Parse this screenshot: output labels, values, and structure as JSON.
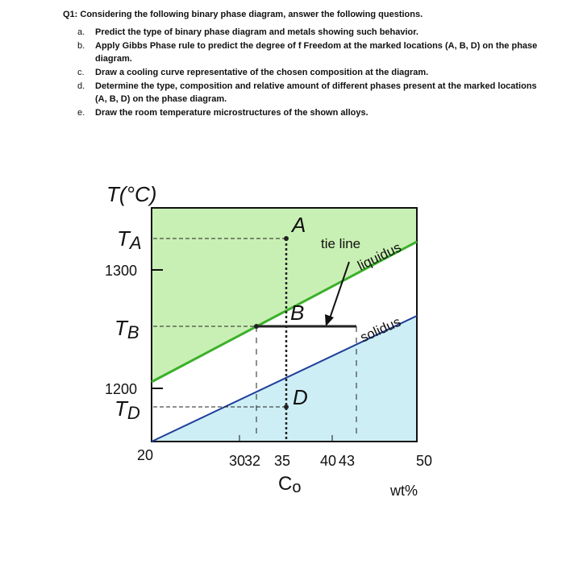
{
  "question": {
    "title": "Q1: Considering the following binary phase diagram, answer the following questions.",
    "items": [
      {
        "marker": "a.",
        "text": "Predict the type of binary phase diagram and metals showing such behavior."
      },
      {
        "marker": "b.",
        "text": "Apply Gibbs Phase rule to predict the degree of f Freedom at the marked locations (A, B, D) on the phase diagram."
      },
      {
        "marker": "c.",
        "text": "Draw a cooling curve representative of the chosen composition at the diagram."
      },
      {
        "marker": "d.",
        "text": "Determine the type, composition and relative amount of different phases present at the marked locations (A, B, D) on the phase diagram."
      },
      {
        "marker": "e.",
        "text": "Draw the room temperature microstructures of the shown alloys."
      }
    ]
  },
  "diagram": {
    "y_axis_label": "T(°C)",
    "y_labels": [
      {
        "main": "T",
        "sub": "A"
      },
      {
        "main": 1300
      },
      {
        "main": "T",
        "sub": "B"
      },
      {
        "main": 1200
      },
      {
        "main": "T",
        "sub": "D"
      }
    ],
    "x_labels": [
      20,
      30,
      32,
      35,
      40,
      43,
      50
    ],
    "x_axis_label": "wt%",
    "composition_label": {
      "main": "C",
      "sub": "o"
    },
    "points": [
      "A",
      "B",
      "D"
    ],
    "annotations": [
      "tie line",
      "liquidus",
      "solidus"
    ]
  }
}
